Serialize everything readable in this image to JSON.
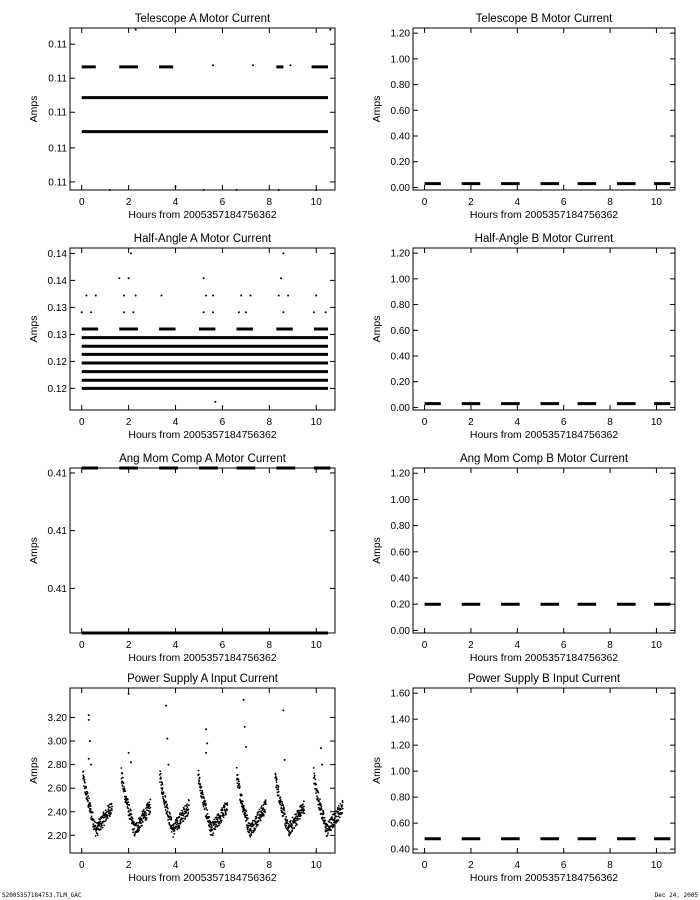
{
  "footer": {
    "left_text": "S2005357184753.TLM_GAC",
    "right_text": "Dec 24, 2005"
  },
  "chart_data": [
    {
      "type": "scatter",
      "title": "Telescope A Motor Current",
      "xlabel": "Hours from 2005357184756362",
      "ylabel": "Amps",
      "xlim": [
        -0.5,
        10.8
      ],
      "ylim": [
        0.0,
        1.0
      ],
      "xticks": [
        0,
        2,
        4,
        6,
        8,
        10
      ],
      "yticks": [
        {
          "v": 0.05,
          "label": "0.11"
        },
        {
          "v": 0.26,
          "label": "0.11"
        },
        {
          "v": 0.48,
          "label": "0.11"
        },
        {
          "v": 0.69,
          "label": "0.11"
        },
        {
          "v": 0.9,
          "label": "0.11"
        }
      ],
      "series": [
        {
          "segments": [
            [
              0.0,
              10.5,
              0.36
            ],
            [
              0.0,
              10.5,
              0.57
            ]
          ]
        },
        {
          "segments": [
            [
              0.0,
              0.6,
              0.76
            ],
            [
              1.6,
              2.4,
              0.76
            ],
            [
              3.3,
              3.9,
              0.76
            ],
            [
              8.3,
              8.6,
              0.76
            ],
            [
              9.8,
              10.5,
              0.76
            ]
          ]
        },
        {
          "points": [
            [
              5.6,
              0.77
            ],
            [
              7.3,
              0.77
            ],
            [
              8.9,
              0.77
            ],
            [
              1.2,
              0.0
            ],
            [
              4.0,
              0.02
            ],
            [
              5.2,
              0.0
            ],
            [
              6.6,
              0.0
            ],
            [
              8.4,
              0.0
            ],
            [
              10.0,
              0.0
            ],
            [
              2.3,
              0.99
            ],
            [
              10.6,
              0.99
            ]
          ]
        }
      ]
    },
    {
      "type": "scatter",
      "title": "Telescope B Motor Current",
      "xlabel": "Hours from 2005357184756362",
      "ylabel": "Amps",
      "xlim": [
        -0.5,
        10.8
      ],
      "ylim": [
        -0.02,
        1.24
      ],
      "xticks": [
        0,
        2,
        4,
        6,
        8,
        10
      ],
      "yticks": [
        {
          "v": 0.0,
          "label": "0.00"
        },
        {
          "v": 0.2,
          "label": "0.20"
        },
        {
          "v": 0.4,
          "label": "0.40"
        },
        {
          "v": 0.6,
          "label": "0.60"
        },
        {
          "v": 0.8,
          "label": "0.80"
        },
        {
          "v": 1.0,
          "label": "1.00"
        },
        {
          "v": 1.2,
          "label": "1.20"
        }
      ],
      "series": [
        {
          "segments": [
            [
              0.0,
              0.7,
              0.03
            ],
            [
              1.6,
              2.4,
              0.03
            ],
            [
              3.3,
              4.1,
              0.03
            ],
            [
              5.0,
              5.8,
              0.03
            ],
            [
              6.6,
              7.4,
              0.03
            ],
            [
              8.3,
              9.1,
              0.03
            ],
            [
              9.9,
              10.6,
              0.03
            ]
          ]
        }
      ]
    },
    {
      "type": "scatter",
      "title": "Half-Angle A Motor Current",
      "xlabel": "Hours from 2005357184756362",
      "ylabel": "Amps",
      "xlim": [
        -0.5,
        10.8
      ],
      "ylim": [
        0.116,
        0.146
      ],
      "xticks": [
        0,
        2,
        4,
        6,
        8,
        10
      ],
      "yticks": [
        {
          "v": 0.12,
          "label": "0.12"
        },
        {
          "v": 0.125,
          "label": "0.12"
        },
        {
          "v": 0.13,
          "label": "0.13"
        },
        {
          "v": 0.135,
          "label": "0.13"
        },
        {
          "v": 0.14,
          "label": "0.14"
        },
        {
          "v": 0.145,
          "label": "0.14"
        }
      ],
      "series": [
        {
          "segments": [
            [
              0.0,
              10.5,
              0.12
            ],
            [
              0.0,
              10.5,
              0.1215
            ],
            [
              0.0,
              10.5,
              0.1231
            ],
            [
              0.0,
              10.5,
              0.1247
            ],
            [
              0.0,
              10.5,
              0.1263
            ],
            [
              0.0,
              10.5,
              0.1278
            ],
            [
              0.0,
              10.5,
              0.1294
            ],
            [
              0.0,
              0.7,
              0.131
            ],
            [
              1.6,
              2.4,
              0.131
            ],
            [
              3.3,
              4.0,
              0.131
            ],
            [
              5.0,
              5.7,
              0.131
            ],
            [
              6.6,
              7.3,
              0.131
            ],
            [
              8.3,
              9.0,
              0.131
            ],
            [
              9.9,
              10.5,
              0.131
            ]
          ]
        },
        {
          "points": [
            [
              0.0,
              0.1341
            ],
            [
              0.4,
              0.1341
            ],
            [
              1.8,
              0.1341
            ],
            [
              2.2,
              0.1341
            ],
            [
              5.2,
              0.1341
            ],
            [
              5.6,
              0.1341
            ],
            [
              6.7,
              0.1341
            ],
            [
              7.0,
              0.1341
            ],
            [
              8.6,
              0.1341
            ],
            [
              9.9,
              0.1341
            ],
            [
              10.4,
              0.1341
            ],
            [
              0.2,
              0.1372
            ],
            [
              0.6,
              0.1372
            ],
            [
              1.8,
              0.1372
            ],
            [
              2.3,
              0.1372
            ],
            [
              3.4,
              0.1372
            ],
            [
              5.3,
              0.1372
            ],
            [
              5.6,
              0.1372
            ],
            [
              6.8,
              0.1372
            ],
            [
              7.2,
              0.1372
            ],
            [
              8.4,
              0.1372
            ],
            [
              8.8,
              0.1372
            ],
            [
              10.0,
              0.1372
            ],
            [
              1.6,
              0.1404
            ],
            [
              2.0,
              0.1404
            ],
            [
              8.5,
              0.1404
            ],
            [
              5.2,
              0.1404
            ],
            [
              2.1,
              0.145
            ],
            [
              8.6,
              0.145
            ],
            [
              5.7,
              0.1175
            ]
          ]
        }
      ]
    },
    {
      "type": "scatter",
      "title": "Half-Angle B Motor Current",
      "xlabel": "Hours from 2005357184756362",
      "ylabel": "Amps",
      "xlim": [
        -0.5,
        10.8
      ],
      "ylim": [
        -0.02,
        1.24
      ],
      "xticks": [
        0,
        2,
        4,
        6,
        8,
        10
      ],
      "yticks": [
        {
          "v": 0.0,
          "label": "0.00"
        },
        {
          "v": 0.2,
          "label": "0.20"
        },
        {
          "v": 0.4,
          "label": "0.40"
        },
        {
          "v": 0.6,
          "label": "0.60"
        },
        {
          "v": 0.8,
          "label": "0.80"
        },
        {
          "v": 1.0,
          "label": "1.00"
        },
        {
          "v": 1.2,
          "label": "1.20"
        }
      ],
      "series": [
        {
          "segments": [
            [
              0.0,
              0.7,
              0.03
            ],
            [
              1.6,
              2.4,
              0.03
            ],
            [
              3.3,
              4.1,
              0.03
            ],
            [
              5.0,
              5.8,
              0.03
            ],
            [
              6.6,
              7.4,
              0.03
            ],
            [
              8.3,
              9.1,
              0.03
            ],
            [
              9.9,
              10.6,
              0.03
            ]
          ]
        }
      ]
    },
    {
      "type": "scatter",
      "title": "Ang Mom Comp A Motor Current",
      "xlabel": "Hours from 2005357184756362",
      "ylabel": "Amps",
      "xlim": [
        -0.5,
        10.8
      ],
      "ylim": [
        0.0,
        1.0
      ],
      "xticks": [
        0,
        2,
        4,
        6,
        8,
        10
      ],
      "yticks": [
        {
          "v": 0.97,
          "label": "0.41"
        },
        {
          "v": 0.62,
          "label": "0.41"
        },
        {
          "v": 0.27,
          "label": "0.41"
        }
      ],
      "series": [
        {
          "segments": [
            [
              0.0,
              10.5,
              0.0
            ],
            [
              0.0,
              0.7,
              1.0
            ],
            [
              1.6,
              2.4,
              1.0
            ],
            [
              3.3,
              4.1,
              1.0
            ],
            [
              5.0,
              5.8,
              1.0
            ],
            [
              6.6,
              7.4,
              1.0
            ],
            [
              8.3,
              9.1,
              1.0
            ],
            [
              9.9,
              10.6,
              1.0
            ]
          ]
        }
      ]
    },
    {
      "type": "scatter",
      "title": "Ang Mom Comp B Motor Current",
      "xlabel": "Hours from 2005357184756362",
      "ylabel": "Amps",
      "xlim": [
        -0.5,
        10.8
      ],
      "ylim": [
        -0.02,
        1.24
      ],
      "xticks": [
        0,
        2,
        4,
        6,
        8,
        10
      ],
      "yticks": [
        {
          "v": 0.0,
          "label": "0.00"
        },
        {
          "v": 0.2,
          "label": "0.20"
        },
        {
          "v": 0.4,
          "label": "0.40"
        },
        {
          "v": 0.6,
          "label": "0.60"
        },
        {
          "v": 0.8,
          "label": "0.80"
        },
        {
          "v": 1.0,
          "label": "1.00"
        },
        {
          "v": 1.2,
          "label": "1.20"
        }
      ],
      "series": [
        {
          "segments": [
            [
              0.0,
              0.7,
              0.2
            ],
            [
              1.6,
              2.4,
              0.2
            ],
            [
              3.3,
              4.1,
              0.2
            ],
            [
              5.0,
              5.8,
              0.2
            ],
            [
              6.6,
              7.4,
              0.2
            ],
            [
              8.3,
              9.1,
              0.2
            ],
            [
              9.9,
              10.6,
              0.2
            ]
          ]
        }
      ]
    },
    {
      "type": "scatter",
      "title": "Power Supply A Input Current",
      "xlabel": "Hours from 2005357184756362",
      "ylabel": "Amps",
      "xlim": [
        -0.5,
        10.8
      ],
      "ylim": [
        2.05,
        3.45
      ],
      "xticks": [
        0,
        2,
        4,
        6,
        8,
        10
      ],
      "yticks": [
        {
          "v": 2.2,
          "label": "2.20"
        },
        {
          "v": 2.4,
          "label": "2.40"
        },
        {
          "v": 2.6,
          "label": "2.60"
        },
        {
          "v": 2.8,
          "label": "2.80"
        },
        {
          "v": 3.0,
          "label": "3.00"
        },
        {
          "v": 3.2,
          "label": "3.20"
        }
      ],
      "series": [
        {
          "name": "",
          "pattern": {
            "period": 1.64,
            "t0": 0.05,
            "peak": 2.72,
            "floor": 2.24,
            "base": 2.45,
            "count": 9
          }
        },
        {
          "points": [
            [
              0.3,
              3.22
            ],
            [
              0.3,
              3.18
            ],
            [
              0.35,
              3.0
            ],
            [
              0.3,
              2.85
            ],
            [
              0.4,
              2.8
            ],
            [
              2.0,
              3.4
            ],
            [
              2.0,
              2.9
            ],
            [
              2.1,
              2.82
            ],
            [
              3.6,
              3.3
            ],
            [
              3.65,
              3.02
            ],
            [
              3.7,
              2.8
            ],
            [
              5.3,
              3.1
            ],
            [
              5.35,
              2.98
            ],
            [
              5.3,
              2.9
            ],
            [
              6.9,
              3.35
            ],
            [
              6.95,
              3.12
            ],
            [
              7.0,
              2.95
            ],
            [
              8.6,
              3.26
            ],
            [
              8.65,
              2.84
            ],
            [
              10.2,
              2.94
            ],
            [
              10.25,
              2.8
            ]
          ]
        }
      ]
    },
    {
      "type": "scatter",
      "title": "Power Supply B Input Current",
      "xlabel": "Hours from 2005357184756362",
      "ylabel": "Amps",
      "xlim": [
        -0.5,
        10.8
      ],
      "ylim": [
        0.37,
        1.64
      ],
      "xticks": [
        0,
        2,
        4,
        6,
        8,
        10
      ],
      "yticks": [
        {
          "v": 0.4,
          "label": "0.40"
        },
        {
          "v": 0.6,
          "label": "0.60"
        },
        {
          "v": 0.8,
          "label": "0.80"
        },
        {
          "v": 1.0,
          "label": "1.00"
        },
        {
          "v": 1.2,
          "label": "1.20"
        },
        {
          "v": 1.4,
          "label": "1.40"
        },
        {
          "v": 1.6,
          "label": "1.60"
        }
      ],
      "series": [
        {
          "segments": [
            [
              0.0,
              0.7,
              0.48
            ],
            [
              1.6,
              2.4,
              0.48
            ],
            [
              3.3,
              4.1,
              0.48
            ],
            [
              5.0,
              5.8,
              0.48
            ],
            [
              6.6,
              7.4,
              0.48
            ],
            [
              8.3,
              9.1,
              0.48
            ],
            [
              9.9,
              10.6,
              0.48
            ]
          ]
        }
      ]
    }
  ]
}
